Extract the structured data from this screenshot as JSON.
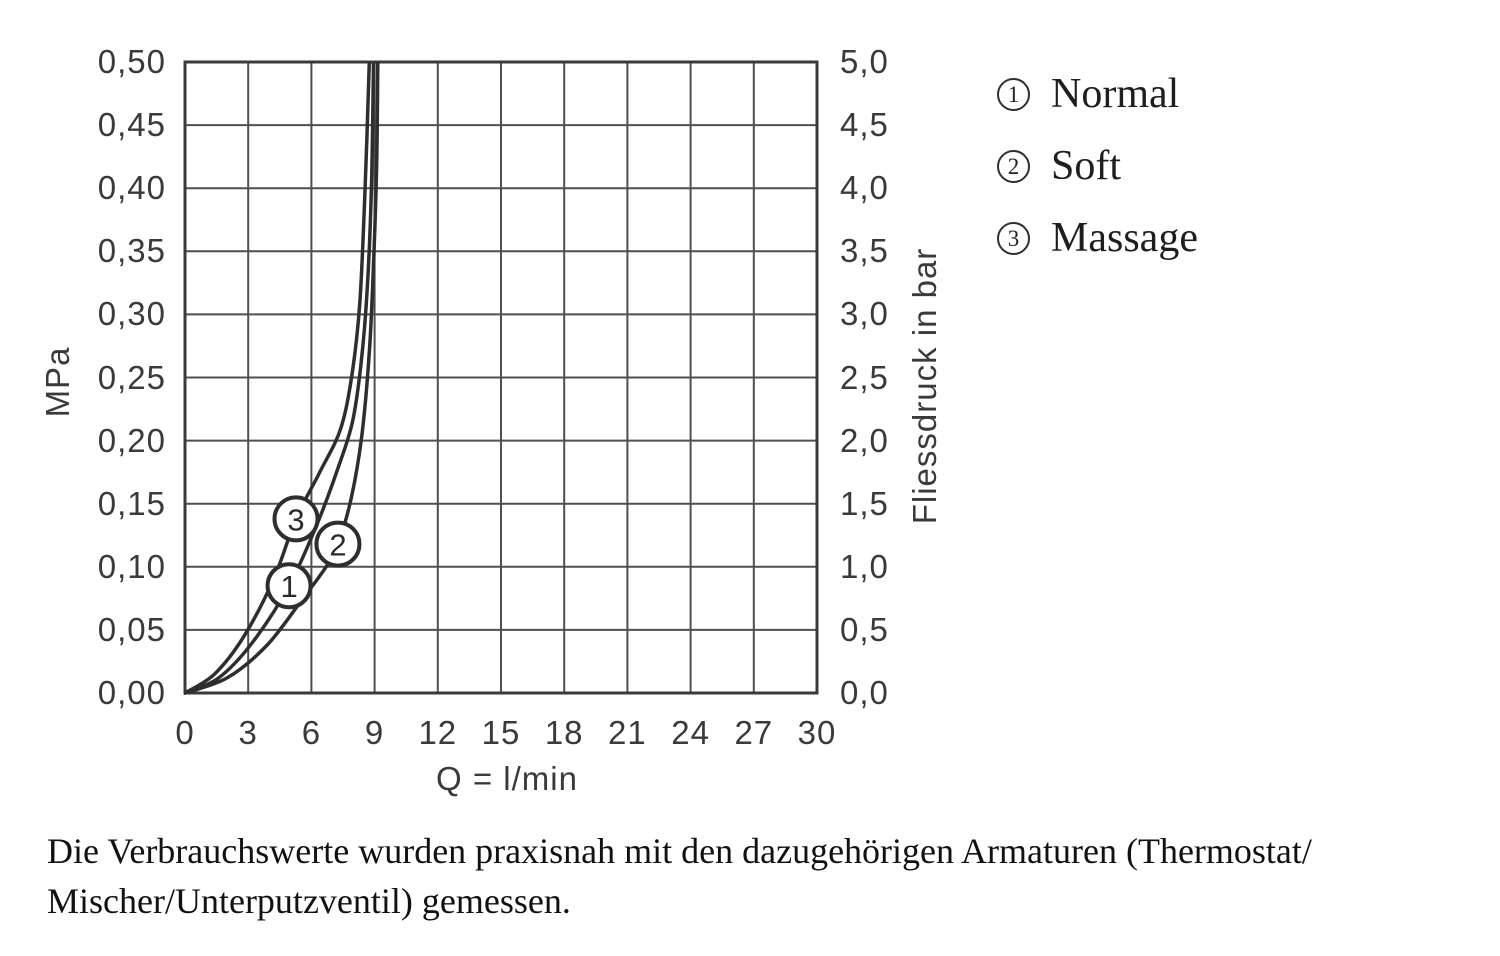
{
  "colors": {
    "background": "#ffffff",
    "grid": "#4f4f4f",
    "border": "#3a3a3a",
    "line": "#2e2e2e",
    "text": "#3a3a3a"
  },
  "legend": {
    "items": [
      {
        "number": "1",
        "label": "Normal"
      },
      {
        "number": "2",
        "label": "Soft"
      },
      {
        "number": "3",
        "label": "Massage"
      }
    ]
  },
  "footer": {
    "line1": "Die Verbrauchswerte wurden praxisnah mit den dazugehörigen Armaturen (Thermostat/",
    "line2": "Mischer/Unterputzventil) gemessen."
  },
  "chart_data": {
    "type": "line",
    "title": "",
    "xlabel": "Q = l/min",
    "ylabel_left": "MPa",
    "ylabel_right": "Fliessdruck in bar",
    "xlim": [
      0,
      30
    ],
    "ylim_mpa": [
      0,
      0.5
    ],
    "ylim_bar": [
      0,
      5.0
    ],
    "grid": true,
    "x_ticks": [
      "0",
      "3",
      "6",
      "9",
      "12",
      "15",
      "18",
      "21",
      "24",
      "27",
      "30"
    ],
    "y_ticks_left_mpa": [
      "0,50",
      "0,45",
      "0,40",
      "0,35",
      "0,30",
      "0,25",
      "0,20",
      "0,15",
      "0,10",
      "0,05",
      "0,00"
    ],
    "y_ticks_right_bar": [
      "5,0",
      "4,5",
      "4,0",
      "3,5",
      "3,0",
      "2,5",
      "2,0",
      "1,5",
      "1,0",
      "0,5",
      "0,0"
    ],
    "series": [
      {
        "number": "1",
        "name": "Normal",
        "points": [
          [
            0,
            0
          ],
          [
            1.6,
            0.012
          ],
          [
            3.2,
            0.04
          ],
          [
            4.94,
            0.085
          ],
          [
            6.3,
            0.135
          ],
          [
            7.3,
            0.18
          ],
          [
            7.95,
            0.215
          ],
          [
            8.35,
            0.26
          ],
          [
            8.65,
            0.32
          ],
          [
            8.85,
            0.4
          ],
          [
            8.95,
            0.5
          ]
        ]
      },
      {
        "number": "2",
        "name": "Soft",
        "points": [
          [
            0,
            0
          ],
          [
            2.0,
            0.012
          ],
          [
            3.9,
            0.038
          ],
          [
            5.6,
            0.075
          ],
          [
            6.7,
            0.1
          ],
          [
            7.26,
            0.118
          ],
          [
            7.9,
            0.155
          ],
          [
            8.4,
            0.205
          ],
          [
            8.75,
            0.27
          ],
          [
            8.95,
            0.34
          ],
          [
            9.1,
            0.42
          ],
          [
            9.15,
            0.5
          ]
        ]
      },
      {
        "number": "3",
        "name": "Massage",
        "points": [
          [
            0,
            0
          ],
          [
            1.4,
            0.015
          ],
          [
            2.8,
            0.045
          ],
          [
            4.2,
            0.09
          ],
          [
            5.27,
            0.138
          ],
          [
            6.4,
            0.175
          ],
          [
            7.4,
            0.21
          ],
          [
            7.95,
            0.255
          ],
          [
            8.3,
            0.31
          ],
          [
            8.55,
            0.4
          ],
          [
            8.75,
            0.5
          ]
        ]
      }
    ],
    "markers": [
      {
        "label": "1",
        "x": 4.94,
        "y": 0.085
      },
      {
        "label": "2",
        "x": 7.26,
        "y": 0.118
      },
      {
        "label": "3",
        "x": 5.27,
        "y": 0.138
      }
    ]
  }
}
